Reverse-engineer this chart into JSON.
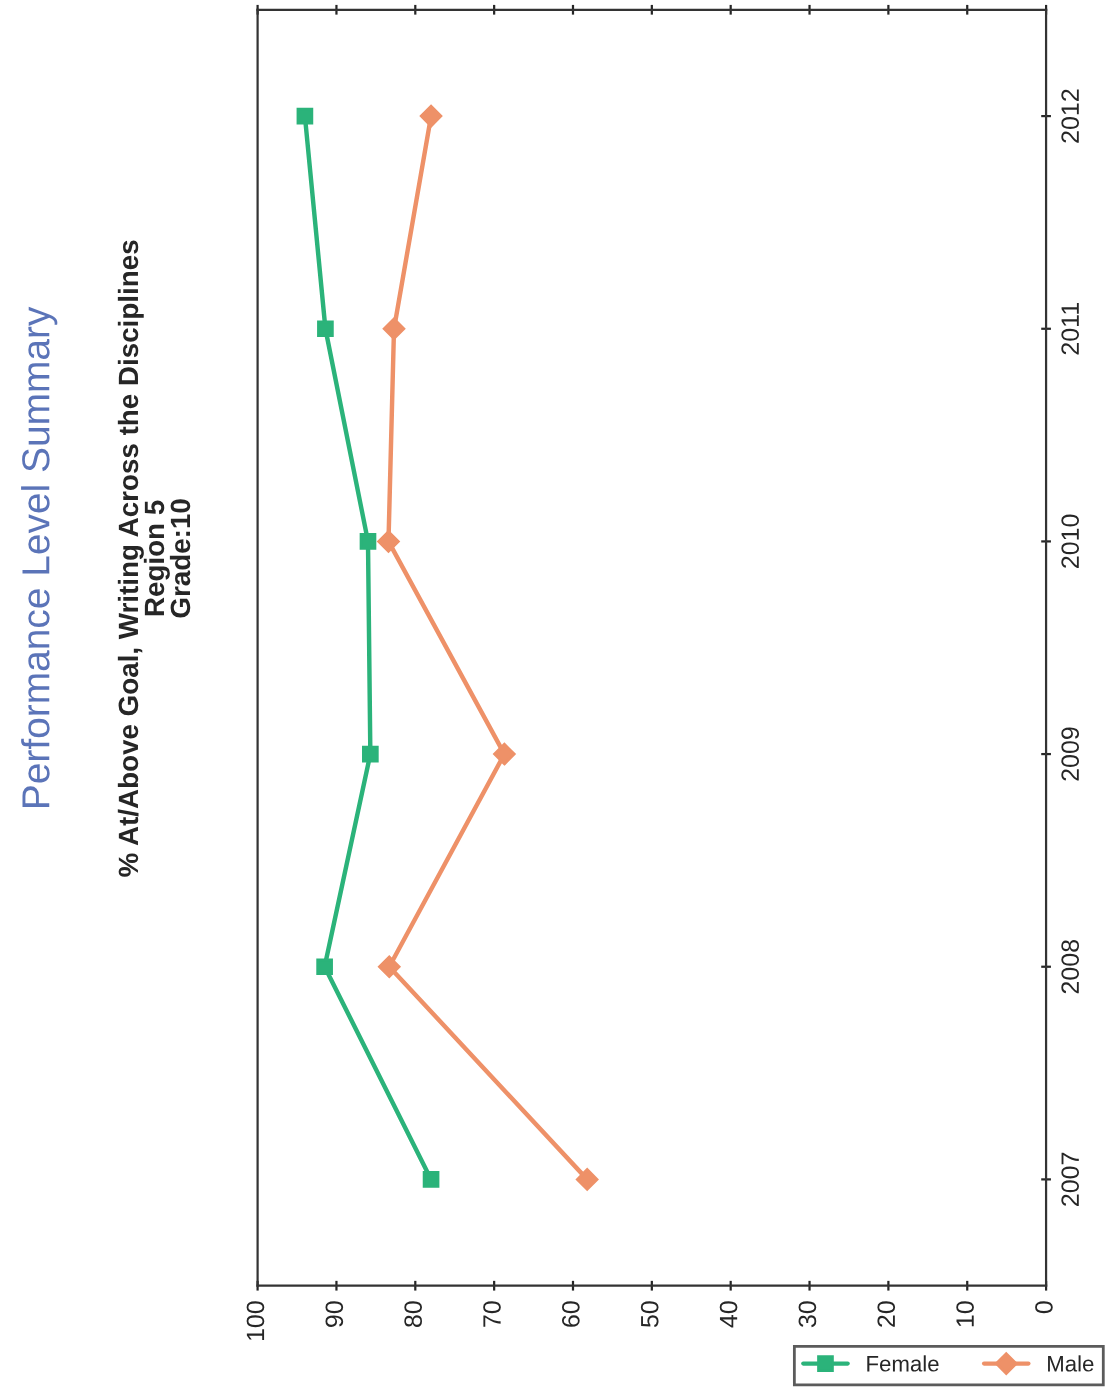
{
  "chart_data": {
    "type": "line",
    "orientation": "horizontal",
    "title": "Performance Level Summary",
    "subtitle": "% At/Above Goal, Writing Across the Disciplines\nRegion 5\nGrade:10",
    "categories": [
      "2012",
      "2011",
      "2010",
      "2009",
      "2008",
      "2007"
    ],
    "series": [
      {
        "name": "Female",
        "color": "#2bb37a",
        "marker": "square",
        "values": [
          94,
          91.4,
          86,
          85.7,
          91.5,
          78
        ]
      },
      {
        "name": "Male",
        "color": "#ee9168",
        "marker": "diamond",
        "values": [
          78,
          82.7,
          83.4,
          68.7,
          83.3,
          58.2
        ]
      }
    ],
    "xlim": [
      100,
      0
    ],
    "xticks": [
      100,
      90,
      80,
      70,
      60,
      50,
      40,
      30,
      20,
      10,
      0
    ],
    "grid": false,
    "legend": "bottom right",
    "line_style": "solid"
  }
}
